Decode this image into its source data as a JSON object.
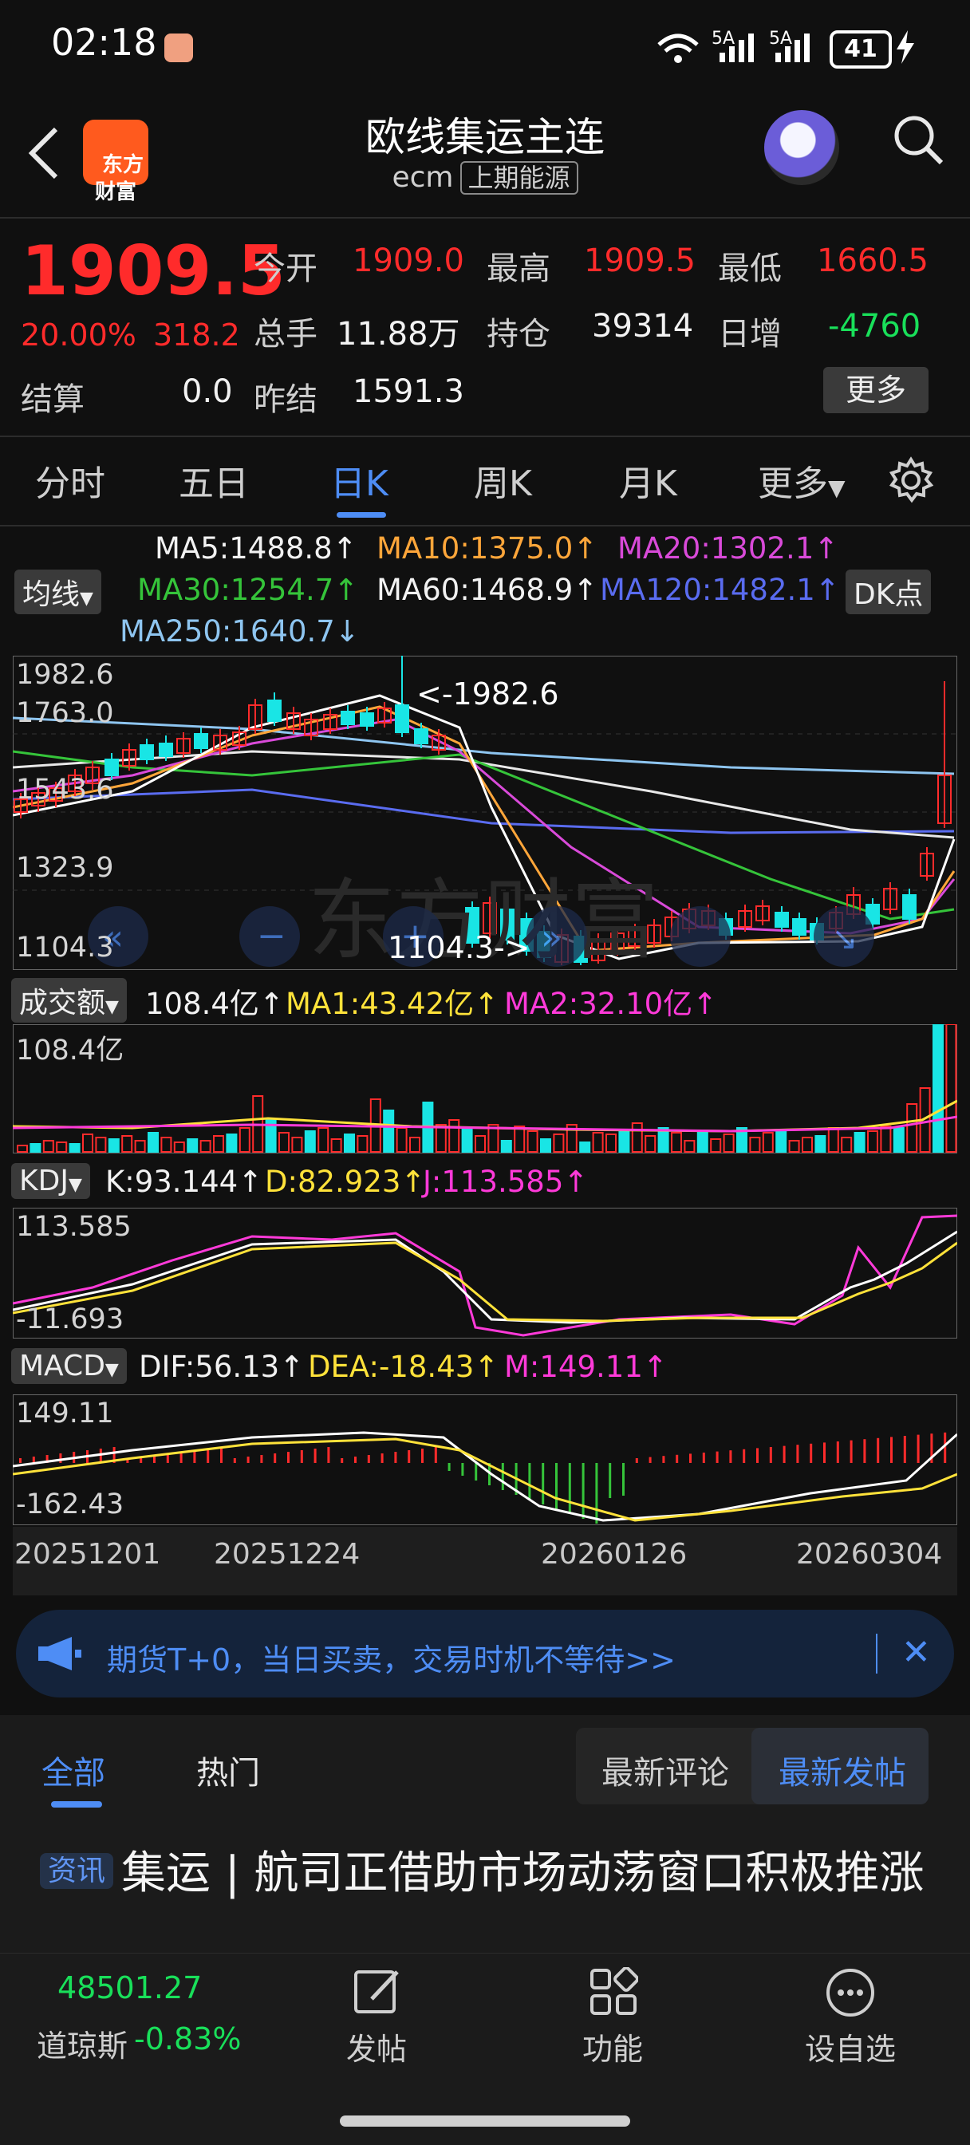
{
  "status": {
    "time": "02:18",
    "net1": "5A",
    "net2": "5A",
    "battery": "41"
  },
  "nav": {
    "logo": "东方\n财富",
    "title": "欧线集运主连",
    "code": "ecm",
    "exchange": "上期能源"
  },
  "quote": {
    "price": "1909.5",
    "pct": "20.00%",
    "chg": "318.2",
    "open_label": "今开",
    "open": "1909.0",
    "high_label": "最高",
    "high": "1909.5",
    "low_label": "最低",
    "low": "1660.5",
    "vol_label": "总手",
    "vol": "11.88万",
    "oi_label": "持仓",
    "oi": "39314",
    "daily_label": "日增",
    "daily": "-4760",
    "settle_label": "结算",
    "settle": "0.0",
    "prev_label": "昨结",
    "prev": "1591.3",
    "more": "更多"
  },
  "tabs": [
    "分时",
    "五日",
    "日K",
    "周K",
    "月K",
    "更多"
  ],
  "ma": {
    "ma5": "MA5:1488.8",
    "ma10": "MA10:1375.0",
    "ma20": "MA20:1302.1",
    "chip": "均线",
    "ma30": "MA30:1254.7",
    "ma60": "MA60:1468.9",
    "ma120": "MA120:1482.1",
    "dk": "DK点",
    "ma250": "MA250:1640.7"
  },
  "colors": {
    "up": "#ff2b2b",
    "down": "#19e5e5",
    "accent": "#4e8df5"
  },
  "chart_data": {
    "type": "candlestick",
    "price_axis": [
      "1982.6",
      "1763.0",
      "1543.6",
      "1323.9",
      "1104.3"
    ],
    "max_label": "<-1982.6",
    "min_label": "1104.3->",
    "dates": [
      "20251201",
      "20251224",
      "20260126",
      "20260304"
    ],
    "volume": {
      "chip": "成交额",
      "val": "108.4亿",
      "ma1": "MA1:43.42亿",
      "ma2": "MA2:32.10亿",
      "axis_top": "108.4亿"
    },
    "kdj": {
      "chip": "KDJ",
      "k": "K:93.144",
      "d": "D:82.923",
      "j": "J:113.585",
      "axis_top": "113.585",
      "axis_bottom": "-11.693"
    },
    "macd": {
      "chip": "MACD",
      "dif": "DIF:56.13",
      "dea": "DEA:-18.43",
      "m": "M:149.11",
      "axis_top": "149.11",
      "axis_bottom": "-162.43"
    }
  },
  "banner": {
    "text": "期货T+0，当日买卖，交易时机不等待>>"
  },
  "feed": {
    "tab_all": "全部",
    "tab_hot": "热门",
    "seg1": "最新评论",
    "seg2": "最新发帖",
    "news_tag": "资讯",
    "news_title": "集运 | 航司正借助市场动荡窗口积极推涨"
  },
  "bottom": {
    "index_val": "48501.27",
    "index_name": "道琼斯",
    "index_pct": "-0.83%",
    "post": "发帖",
    "func": "功能",
    "watch": "设自选"
  }
}
